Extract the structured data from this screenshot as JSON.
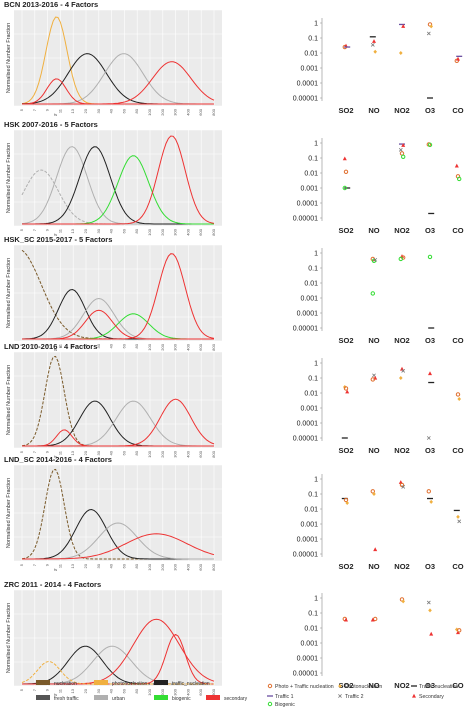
{
  "figure": {
    "x_tick_labels": [
      "5",
      "7",
      "9",
      "11",
      "13",
      "20",
      "30",
      "40",
      "60",
      "80",
      "100",
      "200",
      "300",
      "400",
      "600",
      "800"
    ],
    "x_axis_letter": "fs",
    "y_axis_label": "Normalised Number Fraction",
    "ratio_categories": [
      "SO2",
      "NO",
      "NO2",
      "O3",
      "CO"
    ],
    "ratio_tick_labels": [
      "1",
      "0.1",
      "0.01",
      "0.001",
      "0.0001",
      "0.00001"
    ]
  },
  "colors": {
    "nucleation": "#7a5a2a",
    "photonucleation": "#f0b040",
    "traffic_nucleation": "#222222",
    "fresh_traffic": "#555555",
    "urban": "#b0b0b0",
    "biogenic": "#33dd33",
    "secondary": "#ee3333",
    "photo_traffic": "#e07030",
    "traffic1": "#6a4fa0",
    "traffic2": "#777777",
    "secondary_marker": "#ee3333"
  },
  "left_legend": [
    {
      "label": "nucleation",
      "color_key": "nucleation"
    },
    {
      "label": "photonucleation",
      "color_key": "photonucleation"
    },
    {
      "label": "traffic_nucleation",
      "color_key": "traffic_nucleation"
    },
    {
      "label": "fresh traffic",
      "color_key": "fresh_traffic"
    },
    {
      "label": "urban",
      "color_key": "urban"
    },
    {
      "label": "biogenic",
      "color_key": "biogenic"
    },
    {
      "label": "secondary",
      "color_key": "secondary"
    }
  ],
  "right_legend": [
    {
      "label": "Photo + Traffic nucleation",
      "marker": "circle",
      "color_key": "photo_traffic"
    },
    {
      "label": "Photonucleation",
      "marker": "diamond",
      "color_key": "photonucleation"
    },
    {
      "label": "Traffic nucleation",
      "marker": "dash",
      "color_key": "traffic_nucleation"
    },
    {
      "label": "Traffic 1",
      "marker": "dash",
      "color_key": "traffic1"
    },
    {
      "label": "Traffic 2",
      "marker": "x",
      "color_key": "traffic2"
    },
    {
      "label": "Secondary",
      "marker": "triangle",
      "color_key": "secondary_marker"
    },
    {
      "label": "Biogenic",
      "marker": "circle",
      "color_key": "biogenic"
    }
  ],
  "chart_data": [
    {
      "type": "line",
      "title": "BCN 2013-2016 - 4 Factors",
      "ylim": [
        0,
        1
      ],
      "grid": true,
      "series": [
        {
          "color_key": "photonucleation",
          "dashed": false,
          "mu": 0.18,
          "sd": 0.055,
          "amp": 0.97
        },
        {
          "color_key": "traffic_nucleation",
          "dashed": false,
          "mu": 0.34,
          "sd": 0.1,
          "amp": 0.56
        },
        {
          "color_key": "urban",
          "dashed": false,
          "mu": 0.53,
          "sd": 0.1,
          "amp": 0.56
        },
        {
          "color_key": "secondary",
          "dashed": false,
          "mu": 0.78,
          "sd": 0.1,
          "amp": 0.47
        },
        {
          "color_key": "secondary",
          "dashed": false,
          "mu": 0.18,
          "sd": 0.05,
          "amp": 0.28
        }
      ]
    },
    {
      "type": "line",
      "title": "HSK 2007-2016 - 5 Factors",
      "ylim": [
        0,
        1
      ],
      "grid": true,
      "series": [
        {
          "color_key": "urban",
          "dashed": true,
          "mu": 0.1,
          "sd": 0.09,
          "amp": 0.6
        },
        {
          "color_key": "urban",
          "dashed": false,
          "mu": 0.26,
          "sd": 0.08,
          "amp": 0.86
        },
        {
          "color_key": "traffic_nucleation",
          "dashed": false,
          "mu": 0.38,
          "sd": 0.08,
          "amp": 0.86
        },
        {
          "color_key": "biogenic",
          "dashed": false,
          "mu": 0.58,
          "sd": 0.08,
          "amp": 0.76
        },
        {
          "color_key": "secondary",
          "dashed": false,
          "mu": 0.78,
          "sd": 0.07,
          "amp": 0.98
        }
      ]
    },
    {
      "type": "line",
      "title": "HSK_SC 2015-2017 - 5 Factors",
      "ylim": [
        0,
        1
      ],
      "grid": true,
      "series": [
        {
          "color_key": "nucleation",
          "dashed": true,
          "mu": -0.02,
          "sd": 0.12,
          "amp": 1.0
        },
        {
          "color_key": "traffic_nucleation",
          "dashed": false,
          "mu": 0.26,
          "sd": 0.07,
          "amp": 0.55
        },
        {
          "color_key": "urban",
          "dashed": false,
          "mu": 0.4,
          "sd": 0.08,
          "amp": 0.45
        },
        {
          "color_key": "biogenic",
          "dashed": false,
          "mu": 0.58,
          "sd": 0.08,
          "amp": 0.28
        },
        {
          "color_key": "secondary",
          "dashed": false,
          "mu": 0.78,
          "sd": 0.07,
          "amp": 0.95
        },
        {
          "color_key": "secondary",
          "dashed": false,
          "mu": 0.4,
          "sd": 0.07,
          "amp": 0.32
        }
      ]
    },
    {
      "type": "line",
      "title": "LND 2010-2016 - 4 Factors",
      "ylim": [
        0,
        1
      ],
      "grid": true,
      "series": [
        {
          "color_key": "nucleation",
          "dashed": true,
          "mu": 0.17,
          "sd": 0.05,
          "amp": 1.0
        },
        {
          "color_key": "traffic_nucleation",
          "dashed": false,
          "mu": 0.38,
          "sd": 0.08,
          "amp": 0.5
        },
        {
          "color_key": "urban",
          "dashed": false,
          "mu": 0.58,
          "sd": 0.09,
          "amp": 0.5
        },
        {
          "color_key": "secondary",
          "dashed": false,
          "mu": 0.8,
          "sd": 0.08,
          "amp": 0.52
        },
        {
          "color_key": "secondary",
          "dashed": false,
          "mu": 0.22,
          "sd": 0.04,
          "amp": 0.18
        }
      ]
    },
    {
      "type": "line",
      "title": "LND_SC 2014-2016 - 4 Factors",
      "ylim": [
        0,
        1
      ],
      "grid": true,
      "series": [
        {
          "color_key": "nucleation",
          "dashed": true,
          "mu": 0.17,
          "sd": 0.05,
          "amp": 1.0
        },
        {
          "color_key": "traffic_nucleation",
          "dashed": false,
          "mu": 0.36,
          "sd": 0.08,
          "amp": 0.55
        },
        {
          "color_key": "urban",
          "dashed": false,
          "mu": 0.5,
          "sd": 0.1,
          "amp": 0.4
        },
        {
          "color_key": "secondary",
          "dashed": false,
          "mu": 0.7,
          "sd": 0.16,
          "amp": 0.28
        }
      ]
    },
    {
      "type": "line",
      "title": "ZRC 2011 - 2014 - 4 Factors",
      "ylim": [
        0,
        1
      ],
      "grid": true,
      "series": [
        {
          "color_key": "traffic_nucleation",
          "dashed": false,
          "mu": 0.33,
          "sd": 0.09,
          "amp": 0.42
        },
        {
          "color_key": "urban",
          "dashed": false,
          "mu": 0.47,
          "sd": 0.1,
          "amp": 0.42
        },
        {
          "color_key": "secondary",
          "dashed": false,
          "mu": 0.7,
          "sd": 0.12,
          "amp": 0.72
        },
        {
          "color_key": "secondary",
          "dashed": false,
          "mu": 0.8,
          "sd": 0.05,
          "amp": 0.55
        },
        {
          "color_key": "photonucleation",
          "dashed": true,
          "mu": 0.14,
          "sd": 0.06,
          "amp": 0.25
        }
      ]
    },
    {
      "type": "scatter",
      "title": "",
      "y_scale": "log",
      "ylim": [
        1e-05,
        1
      ],
      "points": [
        {
          "cat": "SO2",
          "marker": "circle",
          "color_key": "photo_traffic",
          "y": 0.025
        },
        {
          "cat": "SO2",
          "marker": "triangle",
          "color_key": "secondary_marker",
          "y": 0.03
        },
        {
          "cat": "SO2",
          "marker": "dash",
          "color_key": "traffic1",
          "y": 0.025
        },
        {
          "cat": "NO",
          "marker": "dash",
          "color_key": "traffic_nucleation",
          "y": 0.12
        },
        {
          "cat": "NO",
          "marker": "triangle",
          "color_key": "secondary_marker",
          "y": 0.06
        },
        {
          "cat": "NO",
          "marker": "diamond",
          "color_key": "photonucleation",
          "y": 0.012
        },
        {
          "cat": "NO",
          "marker": "x",
          "color_key": "traffic2",
          "y": 0.035
        },
        {
          "cat": "NO2",
          "marker": "dash",
          "color_key": "traffic1",
          "y": 0.8
        },
        {
          "cat": "NO2",
          "marker": "triangle",
          "color_key": "secondary_marker",
          "y": 0.6
        },
        {
          "cat": "NO2",
          "marker": "diamond",
          "color_key": "photonucleation",
          "y": 0.01
        },
        {
          "cat": "O3",
          "marker": "circle",
          "color_key": "photo_traffic",
          "y": 0.8
        },
        {
          "cat": "O3",
          "marker": "diamond",
          "color_key": "photonucleation",
          "y": 0.6
        },
        {
          "cat": "O3",
          "marker": "x",
          "color_key": "traffic2",
          "y": 0.2
        },
        {
          "cat": "O3",
          "marker": "dash",
          "color_key": "traffic_nucleation",
          "y": 1e-05
        },
        {
          "cat": "CO",
          "marker": "dash",
          "color_key": "traffic1",
          "y": 0.006
        },
        {
          "cat": "CO",
          "marker": "circle",
          "color_key": "photo_traffic",
          "y": 0.003
        },
        {
          "cat": "CO",
          "marker": "triangle",
          "color_key": "secondary_marker",
          "y": 0.004
        }
      ]
    },
    {
      "type": "scatter",
      "title": "",
      "y_scale": "log",
      "ylim": [
        1e-05,
        1
      ],
      "points": [
        {
          "cat": "SO2",
          "marker": "triangle",
          "color_key": "secondary_marker",
          "y": 0.09
        },
        {
          "cat": "SO2",
          "marker": "circle",
          "color_key": "photo_traffic",
          "y": 0.012
        },
        {
          "cat": "SO2",
          "marker": "dash",
          "color_key": "traffic_nucleation",
          "y": 0.001
        },
        {
          "cat": "SO2",
          "marker": "circle",
          "color_key": "biogenic",
          "y": 0.001
        },
        {
          "cat": "NO2",
          "marker": "dash",
          "color_key": "traffic1",
          "y": 0.85
        },
        {
          "cat": "NO2",
          "marker": "triangle",
          "color_key": "secondary_marker",
          "y": 0.7
        },
        {
          "cat": "NO2",
          "marker": "x",
          "color_key": "traffic2",
          "y": 0.35
        },
        {
          "cat": "NO2",
          "marker": "circle",
          "color_key": "photo_traffic",
          "y": 0.2
        },
        {
          "cat": "NO2",
          "marker": "circle",
          "color_key": "biogenic",
          "y": 0.12
        },
        {
          "cat": "O3",
          "marker": "circle",
          "color_key": "photo_traffic",
          "y": 0.8
        },
        {
          "cat": "O3",
          "marker": "circle",
          "color_key": "biogenic",
          "y": 0.75
        },
        {
          "cat": "O3",
          "marker": "dash",
          "color_key": "traffic_nucleation",
          "y": 2e-05
        },
        {
          "cat": "CO",
          "marker": "triangle",
          "color_key": "secondary_marker",
          "y": 0.03
        },
        {
          "cat": "CO",
          "marker": "circle",
          "color_key": "photo_traffic",
          "y": 0.006
        },
        {
          "cat": "CO",
          "marker": "circle",
          "color_key": "biogenic",
          "y": 0.004
        }
      ]
    },
    {
      "type": "scatter",
      "title": "",
      "y_scale": "log",
      "ylim": [
        1e-05,
        1
      ],
      "points": [
        {
          "cat": "NO",
          "marker": "circle",
          "color_key": "photo_traffic",
          "y": 0.4
        },
        {
          "cat": "NO",
          "marker": "circle",
          "color_key": "biogenic",
          "y": 0.3
        },
        {
          "cat": "NO",
          "marker": "x",
          "color_key": "traffic2",
          "y": 0.35
        },
        {
          "cat": "NO",
          "marker": "circle",
          "color_key": "biogenic",
          "y": 0.002
        },
        {
          "cat": "NO2",
          "marker": "triangle",
          "color_key": "secondary_marker",
          "y": 0.6
        },
        {
          "cat": "NO2",
          "marker": "circle",
          "color_key": "photo_traffic",
          "y": 0.5
        },
        {
          "cat": "NO2",
          "marker": "circle",
          "color_key": "biogenic",
          "y": 0.4
        },
        {
          "cat": "O3",
          "marker": "circle",
          "color_key": "biogenic",
          "y": 0.55
        },
        {
          "cat": "O3",
          "marker": "dash",
          "color_key": "traffic_nucleation",
          "y": 1e-05
        }
      ]
    },
    {
      "type": "scatter",
      "title": "",
      "y_scale": "log",
      "ylim": [
        1e-05,
        1
      ],
      "points": [
        {
          "cat": "SO2",
          "marker": "diamond",
          "color_key": "photonucleation",
          "y": 0.025
        },
        {
          "cat": "SO2",
          "marker": "circle",
          "color_key": "photo_traffic",
          "y": 0.02
        },
        {
          "cat": "SO2",
          "marker": "triangle",
          "color_key": "secondary_marker",
          "y": 0.012
        },
        {
          "cat": "SO2",
          "marker": "dash",
          "color_key": "traffic_nucleation",
          "y": 1e-05
        },
        {
          "cat": "NO",
          "marker": "x",
          "color_key": "traffic2",
          "y": 0.15
        },
        {
          "cat": "NO",
          "marker": "triangle",
          "color_key": "secondary_marker",
          "y": 0.1
        },
        {
          "cat": "NO",
          "marker": "circle",
          "color_key": "photo_traffic",
          "y": 0.08
        },
        {
          "cat": "NO2",
          "marker": "triangle",
          "color_key": "secondary_marker",
          "y": 0.4
        },
        {
          "cat": "NO2",
          "marker": "x",
          "color_key": "traffic2",
          "y": 0.3
        },
        {
          "cat": "NO2",
          "marker": "diamond",
          "color_key": "photonucleation",
          "y": 0.1
        },
        {
          "cat": "O3",
          "marker": "triangle",
          "color_key": "secondary_marker",
          "y": 0.2
        },
        {
          "cat": "O3",
          "marker": "dash",
          "color_key": "traffic_nucleation",
          "y": 0.05
        },
        {
          "cat": "O3",
          "marker": "x",
          "color_key": "traffic2",
          "y": 1e-05
        },
        {
          "cat": "CO",
          "marker": "circle",
          "color_key": "photo_traffic",
          "y": 0.008
        },
        {
          "cat": "CO",
          "marker": "diamond",
          "color_key": "photonucleation",
          "y": 0.004
        }
      ]
    },
    {
      "type": "scatter",
      "title": "",
      "y_scale": "log",
      "ylim": [
        1e-05,
        1
      ],
      "points": [
        {
          "cat": "SO2",
          "marker": "dash",
          "color_key": "traffic_nucleation",
          "y": 0.05
        },
        {
          "cat": "SO2",
          "marker": "circle",
          "color_key": "photo_traffic",
          "y": 0.04
        },
        {
          "cat": "SO2",
          "marker": "diamond",
          "color_key": "photonucleation",
          "y": 0.025
        },
        {
          "cat": "NO",
          "marker": "circle",
          "color_key": "photo_traffic",
          "y": 0.15
        },
        {
          "cat": "NO",
          "marker": "diamond",
          "color_key": "photonucleation",
          "y": 0.1
        },
        {
          "cat": "NO",
          "marker": "triangle",
          "color_key": "secondary_marker",
          "y": 2e-05
        },
        {
          "cat": "NO2",
          "marker": "triangle",
          "color_key": "secondary_marker",
          "y": 0.6
        },
        {
          "cat": "NO2",
          "marker": "circle",
          "color_key": "photo_traffic",
          "y": 0.4
        },
        {
          "cat": "NO2",
          "marker": "x",
          "color_key": "traffic2",
          "y": 0.3
        },
        {
          "cat": "O3",
          "marker": "circle",
          "color_key": "photo_traffic",
          "y": 0.15
        },
        {
          "cat": "O3",
          "marker": "dash",
          "color_key": "traffic_nucleation",
          "y": 0.05
        },
        {
          "cat": "O3",
          "marker": "diamond",
          "color_key": "photonucleation",
          "y": 0.03
        },
        {
          "cat": "CO",
          "marker": "dash",
          "color_key": "traffic_nucleation",
          "y": 0.008
        },
        {
          "cat": "CO",
          "marker": "diamond",
          "color_key": "photonucleation",
          "y": 0.003
        },
        {
          "cat": "CO",
          "marker": "x",
          "color_key": "traffic2",
          "y": 0.0015
        }
      ]
    },
    {
      "type": "scatter",
      "title": "",
      "y_scale": "log",
      "ylim": [
        1e-05,
        1
      ],
      "points": [
        {
          "cat": "SO2",
          "marker": "circle",
          "color_key": "photo_traffic",
          "y": 0.04
        },
        {
          "cat": "SO2",
          "marker": "triangle",
          "color_key": "secondary_marker",
          "y": 0.035
        },
        {
          "cat": "NO",
          "marker": "circle",
          "color_key": "photo_traffic",
          "y": 0.04
        },
        {
          "cat": "NO",
          "marker": "triangle",
          "color_key": "secondary_marker",
          "y": 0.035
        },
        {
          "cat": "NO2",
          "marker": "circle",
          "color_key": "photo_traffic",
          "y": 0.8
        },
        {
          "cat": "NO2",
          "marker": "diamond",
          "color_key": "photonucleation",
          "y": 0.6
        },
        {
          "cat": "O3",
          "marker": "x",
          "color_key": "traffic2",
          "y": 0.5
        },
        {
          "cat": "O3",
          "marker": "diamond",
          "color_key": "photonucleation",
          "y": 0.15
        },
        {
          "cat": "O3",
          "marker": "triangle",
          "color_key": "secondary_marker",
          "y": 0.004
        },
        {
          "cat": "CO",
          "marker": "diamond",
          "color_key": "photonucleation",
          "y": 0.008
        },
        {
          "cat": "CO",
          "marker": "triangle",
          "color_key": "secondary_marker",
          "y": 0.005
        },
        {
          "cat": "CO",
          "marker": "circle",
          "color_key": "photo_traffic",
          "y": 0.007
        }
      ]
    }
  ]
}
